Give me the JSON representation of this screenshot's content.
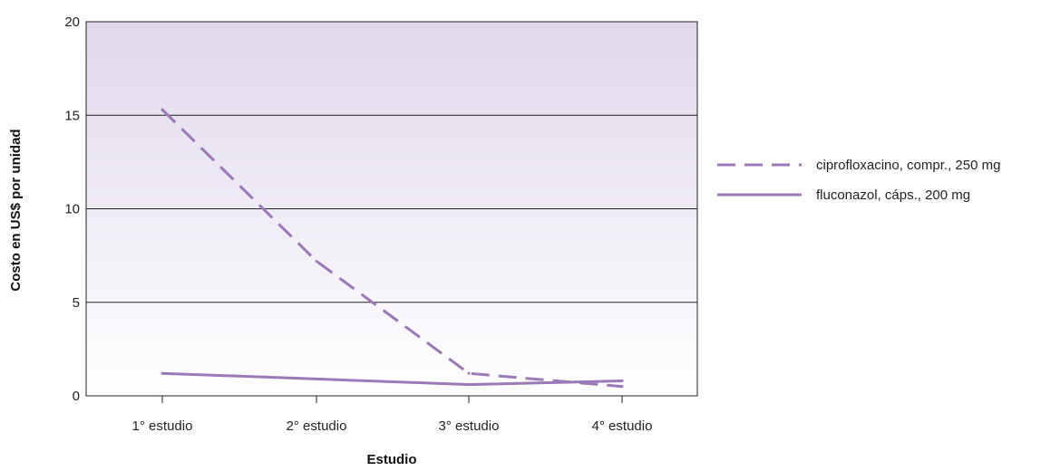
{
  "chart_data": {
    "type": "line",
    "title": "",
    "xlabel": "Estudio",
    "ylabel": "Costo en US$ por unidad",
    "categories": [
      "1° estudio",
      "2° estudio",
      "3° estudio",
      "4° estudio"
    ],
    "ylim": [
      0,
      20
    ],
    "yticks": [
      0,
      5,
      10,
      15,
      20
    ],
    "grid": true,
    "legend_position": "right",
    "series": [
      {
        "name": "ciprofloxacino, compr., 250 mg",
        "values": [
          15.3,
          7.2,
          1.2,
          0.5
        ],
        "style": "dashed",
        "color": "#9b78b8"
      },
      {
        "name": "fluconazol, cáps., 200 mg",
        "values": [
          1.2,
          0.9,
          0.6,
          0.8
        ],
        "style": "solid",
        "color": "#9b78b8"
      }
    ],
    "colors": {
      "plot_bg_top": "#e0d8ec",
      "plot_bg_bottom": "#ffffff",
      "gridline": "#222222"
    }
  }
}
